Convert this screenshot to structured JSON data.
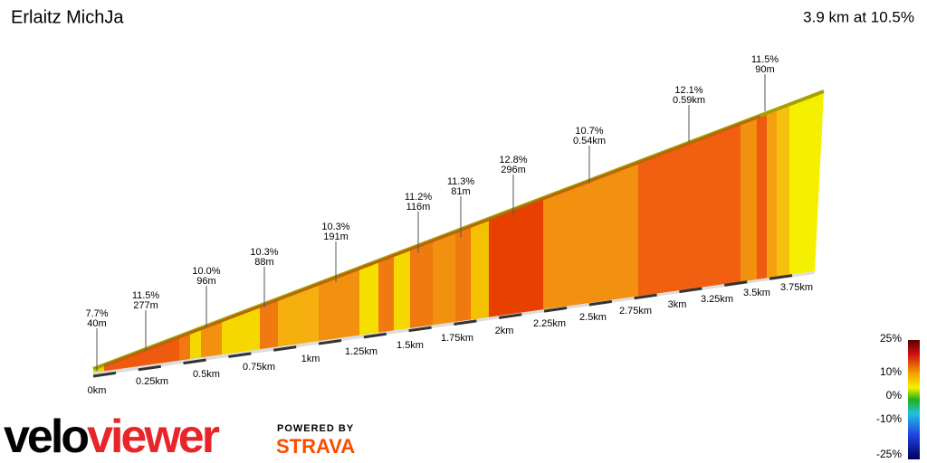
{
  "title": "Erlaitz MichJa",
  "summary": "3.9 km at 10.5%",
  "annotations": [
    {
      "gradient": "7.7%",
      "length": "40m"
    },
    {
      "gradient": "11.5%",
      "length": "277m"
    },
    {
      "gradient": "10.0%",
      "length": "96m"
    },
    {
      "gradient": "10.3%",
      "length": "88m"
    },
    {
      "gradient": "10.3%",
      "length": "191m"
    },
    {
      "gradient": "11.2%",
      "length": "116m"
    },
    {
      "gradient": "11.3%",
      "length": "81m"
    },
    {
      "gradient": "12.8%",
      "length": "296m"
    },
    {
      "gradient": "10.7%",
      "length": "0.54km"
    },
    {
      "gradient": "12.1%",
      "length": "0.59km"
    },
    {
      "gradient": "11.5%",
      "length": "90m"
    }
  ],
  "distance_labels": [
    "0km",
    "0.25km",
    "0.5km",
    "0.75km",
    "1km",
    "1.25km",
    "1.5km",
    "1.75km",
    "2km",
    "2.25km",
    "2.5km",
    "2.75km",
    "3km",
    "3.25km",
    "3.5km",
    "3.75km"
  ],
  "legend": {
    "labels": [
      "25%",
      "10%",
      "0%",
      "-10%",
      "-25%"
    ]
  },
  "brand": {
    "logo_first": "velo",
    "logo_second": "viewer",
    "powered_by": "POWERED BY",
    "strava": "STRAVA"
  }
}
